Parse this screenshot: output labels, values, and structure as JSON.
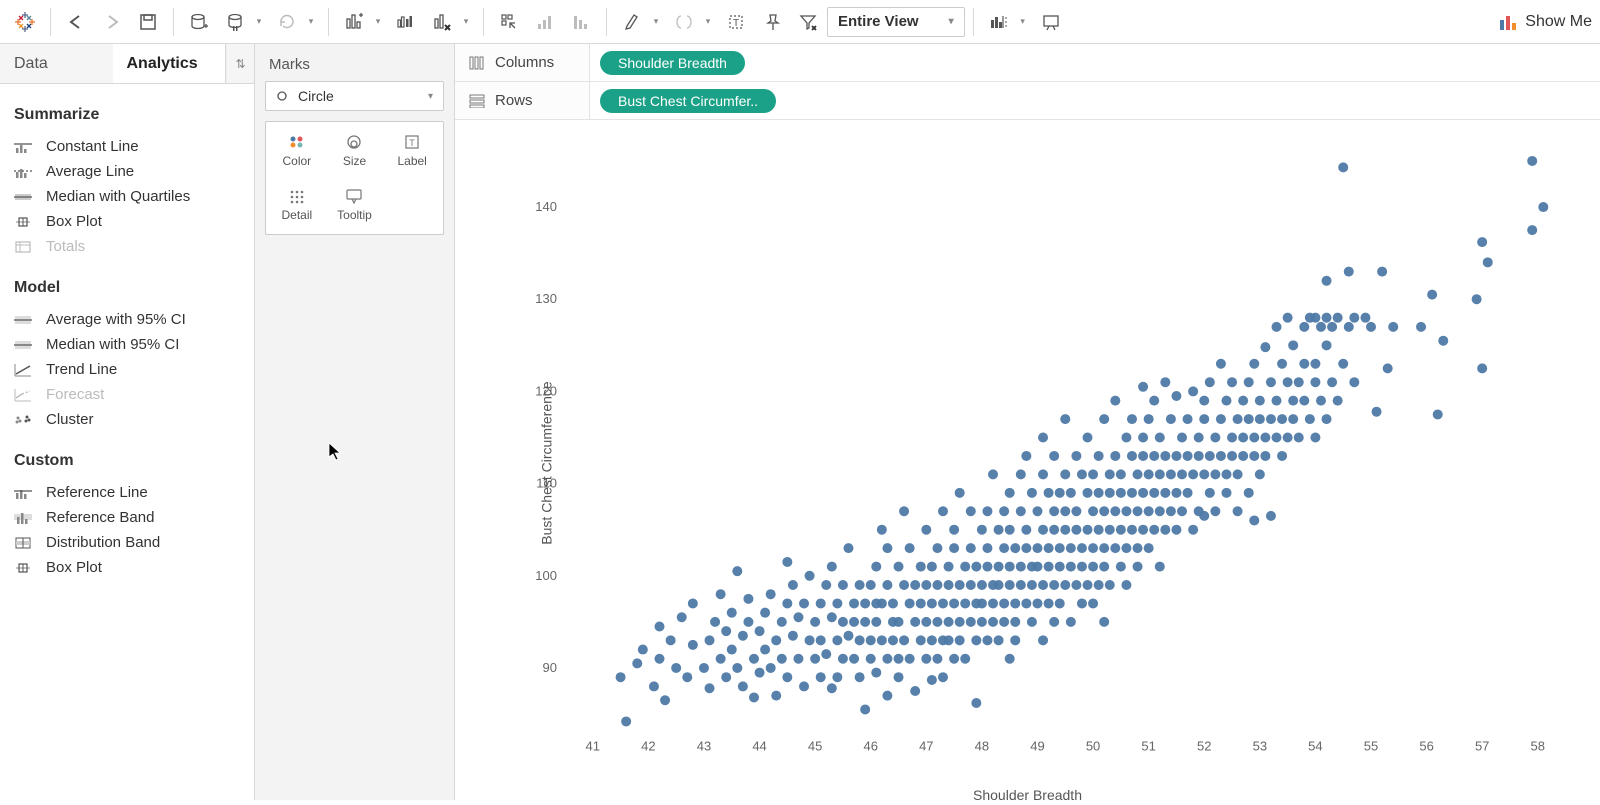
{
  "toolbar": {
    "fit_label": "Entire View",
    "showme_label": "Show Me"
  },
  "tabs": {
    "data": "Data",
    "analytics": "Analytics"
  },
  "analytics": {
    "summarize_title": "Summarize",
    "summarize": [
      "Constant Line",
      "Average Line",
      "Median with Quartiles",
      "Box Plot",
      "Totals"
    ],
    "summarize_disabled": [
      4
    ],
    "model_title": "Model",
    "model": [
      "Average with 95% CI",
      "Median with 95% CI",
      "Trend Line",
      "Forecast",
      "Cluster"
    ],
    "model_disabled": [
      3
    ],
    "custom_title": "Custom",
    "custom": [
      "Reference Line",
      "Reference Band",
      "Distribution Band",
      "Box Plot"
    ]
  },
  "marks": {
    "title": "Marks",
    "type": "Circle",
    "cells": [
      "Color",
      "Size",
      "Label",
      "Detail",
      "Tooltip"
    ]
  },
  "shelves": {
    "columns_label": "Columns",
    "rows_label": "Rows",
    "columns_pill": "Shoulder Breadth",
    "rows_pill": "Bust Chest Circumfer.."
  },
  "chart": {
    "type": "scatter",
    "x_axis_title": "Shoulder Breadth",
    "y_axis_title": "Bust Chest Circumference",
    "point_color": "#4e79a7",
    "point_radius": 5,
    "x_ticks": [
      41,
      42,
      43,
      44,
      45,
      46,
      47,
      48,
      49,
      50,
      51,
      52,
      53,
      54,
      55,
      56,
      57,
      58
    ],
    "y_ticks": [
      90,
      100,
      110,
      120,
      130,
      140
    ],
    "xlim": [
      40.5,
      58.4
    ],
    "ylim": [
      83,
      147
    ],
    "data": [
      [
        41.5,
        89
      ],
      [
        41.6,
        84.2
      ],
      [
        41.8,
        90.5
      ],
      [
        41.9,
        92
      ],
      [
        42.1,
        88
      ],
      [
        42.2,
        91
      ],
      [
        42.2,
        94.5
      ],
      [
        42.3,
        86.5
      ],
      [
        42.4,
        93
      ],
      [
        42.5,
        90
      ],
      [
        42.6,
        95.5
      ],
      [
        42.7,
        89
      ],
      [
        42.8,
        92.5
      ],
      [
        42.8,
        97
      ],
      [
        43.0,
        90
      ],
      [
        43.1,
        93
      ],
      [
        43.1,
        87.8
      ],
      [
        43.2,
        95
      ],
      [
        43.3,
        91
      ],
      [
        43.3,
        98
      ],
      [
        43.4,
        89
      ],
      [
        43.4,
        94
      ],
      [
        43.5,
        92
      ],
      [
        43.5,
        96
      ],
      [
        43.6,
        90
      ],
      [
        43.6,
        100.5
      ],
      [
        43.7,
        93.5
      ],
      [
        43.7,
        88
      ],
      [
        43.8,
        95
      ],
      [
        43.8,
        97.5
      ],
      [
        43.9,
        91
      ],
      [
        43.9,
        86.8
      ],
      [
        44.0,
        94
      ],
      [
        44.0,
        89.5
      ],
      [
        44.1,
        92
      ],
      [
        44.1,
        96
      ],
      [
        44.2,
        90
      ],
      [
        44.2,
        98
      ],
      [
        44.3,
        93
      ],
      [
        44.3,
        87
      ],
      [
        44.4,
        95
      ],
      [
        44.4,
        91
      ],
      [
        44.5,
        97
      ],
      [
        44.5,
        89
      ],
      [
        44.5,
        101.5
      ],
      [
        44.6,
        93.5
      ],
      [
        44.6,
        99
      ],
      [
        44.7,
        91
      ],
      [
        44.7,
        95.5
      ],
      [
        44.8,
        88
      ],
      [
        44.8,
        97
      ],
      [
        44.9,
        93
      ],
      [
        44.9,
        100
      ],
      [
        45.0,
        91
      ],
      [
        45.0,
        95
      ],
      [
        45.1,
        89
      ],
      [
        45.1,
        97
      ],
      [
        45.1,
        93
      ],
      [
        45.2,
        99
      ],
      [
        45.2,
        91.5
      ],
      [
        45.3,
        95.5
      ],
      [
        45.3,
        87.8
      ],
      [
        45.3,
        101
      ],
      [
        45.4,
        93
      ],
      [
        45.4,
        97
      ],
      [
        45.4,
        89
      ],
      [
        45.5,
        95
      ],
      [
        45.5,
        91
      ],
      [
        45.5,
        99
      ],
      [
        45.6,
        93.5
      ],
      [
        45.6,
        103
      ],
      [
        45.7,
        97
      ],
      [
        45.7,
        91
      ],
      [
        45.7,
        95
      ],
      [
        45.8,
        89
      ],
      [
        45.8,
        99
      ],
      [
        45.8,
        93
      ],
      [
        45.9,
        97
      ],
      [
        45.9,
        85.5
      ],
      [
        45.9,
        95
      ],
      [
        46.0,
        91
      ],
      [
        46.0,
        99
      ],
      [
        46.0,
        93
      ],
      [
        46.1,
        97
      ],
      [
        46.1,
        89.5
      ],
      [
        46.1,
        101
      ],
      [
        46.1,
        95
      ],
      [
        46.2,
        93
      ],
      [
        46.2,
        105
      ],
      [
        46.2,
        97
      ],
      [
        46.3,
        91
      ],
      [
        46.3,
        99
      ],
      [
        46.3,
        87
      ],
      [
        46.3,
        103
      ],
      [
        46.4,
        95
      ],
      [
        46.4,
        93
      ],
      [
        46.4,
        97
      ],
      [
        46.5,
        91
      ],
      [
        46.5,
        101
      ],
      [
        46.5,
        89
      ],
      [
        46.5,
        95
      ],
      [
        46.6,
        99
      ],
      [
        46.6,
        93
      ],
      [
        46.6,
        107
      ],
      [
        46.7,
        97
      ],
      [
        46.7,
        91
      ],
      [
        46.7,
        103
      ],
      [
        46.8,
        95
      ],
      [
        46.8,
        99
      ],
      [
        46.8,
        87.5
      ],
      [
        46.9,
        101
      ],
      [
        46.9,
        93
      ],
      [
        46.9,
        97
      ],
      [
        47.0,
        95
      ],
      [
        47.0,
        91
      ],
      [
        47.0,
        99
      ],
      [
        47.0,
        105
      ],
      [
        47.1,
        93
      ],
      [
        47.1,
        97
      ],
      [
        47.1,
        101
      ],
      [
        47.1,
        88.7
      ],
      [
        47.2,
        95
      ],
      [
        47.2,
        103
      ],
      [
        47.2,
        91
      ],
      [
        47.2,
        99
      ],
      [
        47.3,
        97
      ],
      [
        47.3,
        93
      ],
      [
        47.3,
        107
      ],
      [
        47.3,
        89
      ],
      [
        47.4,
        101
      ],
      [
        47.4,
        95
      ],
      [
        47.4,
        99
      ],
      [
        47.4,
        93
      ],
      [
        47.5,
        97
      ],
      [
        47.5,
        91
      ],
      [
        47.5,
        105
      ],
      [
        47.5,
        103
      ],
      [
        47.6,
        99
      ],
      [
        47.6,
        95
      ],
      [
        47.6,
        93
      ],
      [
        47.6,
        109
      ],
      [
        47.7,
        101
      ],
      [
        47.7,
        97
      ],
      [
        47.7,
        91
      ],
      [
        47.8,
        99
      ],
      [
        47.8,
        103
      ],
      [
        47.8,
        95
      ],
      [
        47.8,
        107
      ],
      [
        47.9,
        97
      ],
      [
        47.9,
        93
      ],
      [
        47.9,
        101
      ],
      [
        47.9,
        86.2
      ],
      [
        48.0,
        99
      ],
      [
        48.0,
        105
      ],
      [
        48.0,
        95
      ],
      [
        48.0,
        97
      ],
      [
        48.1,
        101
      ],
      [
        48.1,
        93
      ],
      [
        48.1,
        107
      ],
      [
        48.1,
        103
      ],
      [
        48.2,
        99
      ],
      [
        48.2,
        97
      ],
      [
        48.2,
        95
      ],
      [
        48.2,
        111
      ],
      [
        48.3,
        101
      ],
      [
        48.3,
        105
      ],
      [
        48.3,
        93
      ],
      [
        48.3,
        99
      ],
      [
        48.4,
        97
      ],
      [
        48.4,
        103
      ],
      [
        48.4,
        107
      ],
      [
        48.4,
        95
      ],
      [
        48.5,
        101
      ],
      [
        48.5,
        99
      ],
      [
        48.5,
        91
      ],
      [
        48.5,
        109
      ],
      [
        48.5,
        105
      ],
      [
        48.6,
        97
      ],
      [
        48.6,
        103
      ],
      [
        48.6,
        95
      ],
      [
        48.6,
        93
      ],
      [
        48.7,
        101
      ],
      [
        48.7,
        99
      ],
      [
        48.7,
        107
      ],
      [
        48.7,
        111
      ],
      [
        48.8,
        97
      ],
      [
        48.8,
        105
      ],
      [
        48.8,
        103
      ],
      [
        48.8,
        113
      ],
      [
        48.9,
        99
      ],
      [
        48.9,
        101
      ],
      [
        48.9,
        95
      ],
      [
        48.9,
        109
      ],
      [
        49.0,
        97
      ],
      [
        49.0,
        103
      ],
      [
        49.0,
        107
      ],
      [
        49.0,
        101
      ],
      [
        49.1,
        99
      ],
      [
        49.1,
        105
      ],
      [
        49.1,
        93
      ],
      [
        49.1,
        111
      ],
      [
        49.1,
        115
      ],
      [
        49.2,
        103
      ],
      [
        49.2,
        97
      ],
      [
        49.2,
        101
      ],
      [
        49.2,
        109
      ],
      [
        49.3,
        105
      ],
      [
        49.3,
        99
      ],
      [
        49.3,
        107
      ],
      [
        49.3,
        95
      ],
      [
        49.3,
        113
      ],
      [
        49.4,
        101
      ],
      [
        49.4,
        103
      ],
      [
        49.4,
        97
      ],
      [
        49.4,
        109
      ],
      [
        49.5,
        105
      ],
      [
        49.5,
        99
      ],
      [
        49.5,
        111
      ],
      [
        49.5,
        107
      ],
      [
        49.5,
        117
      ],
      [
        49.6,
        103
      ],
      [
        49.6,
        101
      ],
      [
        49.6,
        95
      ],
      [
        49.6,
        109
      ],
      [
        49.7,
        105
      ],
      [
        49.7,
        99
      ],
      [
        49.7,
        113
      ],
      [
        49.7,
        107
      ],
      [
        49.8,
        103
      ],
      [
        49.8,
        97
      ],
      [
        49.8,
        111
      ],
      [
        49.8,
        101
      ],
      [
        49.9,
        109
      ],
      [
        49.9,
        105
      ],
      [
        49.9,
        99
      ],
      [
        49.9,
        115
      ],
      [
        50.0,
        103
      ],
      [
        50.0,
        107
      ],
      [
        50.0,
        101
      ],
      [
        50.0,
        111
      ],
      [
        50.0,
        97
      ],
      [
        50.1,
        105
      ],
      [
        50.1,
        109
      ],
      [
        50.1,
        99
      ],
      [
        50.1,
        113
      ],
      [
        50.2,
        103
      ],
      [
        50.2,
        107
      ],
      [
        50.2,
        101
      ],
      [
        50.2,
        117
      ],
      [
        50.2,
        95
      ],
      [
        50.3,
        111
      ],
      [
        50.3,
        105
      ],
      [
        50.3,
        109
      ],
      [
        50.3,
        99
      ],
      [
        50.4,
        107
      ],
      [
        50.4,
        103
      ],
      [
        50.4,
        113
      ],
      [
        50.4,
        119
      ],
      [
        50.5,
        105
      ],
      [
        50.5,
        109
      ],
      [
        50.5,
        101
      ],
      [
        50.5,
        111
      ],
      [
        50.6,
        107
      ],
      [
        50.6,
        103
      ],
      [
        50.6,
        115
      ],
      [
        50.6,
        99
      ],
      [
        50.7,
        109
      ],
      [
        50.7,
        105
      ],
      [
        50.7,
        113
      ],
      [
        50.7,
        117
      ],
      [
        50.8,
        107
      ],
      [
        50.8,
        111
      ],
      [
        50.8,
        103
      ],
      [
        50.8,
        101
      ],
      [
        50.9,
        109
      ],
      [
        50.9,
        105
      ],
      [
        50.9,
        115
      ],
      [
        50.9,
        113
      ],
      [
        50.9,
        120.5
      ],
      [
        51.0,
        107
      ],
      [
        51.0,
        111
      ],
      [
        51.0,
        103
      ],
      [
        51.0,
        117
      ],
      [
        51.1,
        109
      ],
      [
        51.1,
        105
      ],
      [
        51.1,
        113
      ],
      [
        51.1,
        119
      ],
      [
        51.2,
        111
      ],
      [
        51.2,
        107
      ],
      [
        51.2,
        115
      ],
      [
        51.2,
        101
      ],
      [
        51.3,
        109
      ],
      [
        51.3,
        113
      ],
      [
        51.3,
        105
      ],
      [
        51.3,
        121
      ],
      [
        51.4,
        111
      ],
      [
        51.4,
        107
      ],
      [
        51.4,
        117
      ],
      [
        51.5,
        109
      ],
      [
        51.5,
        113
      ],
      [
        51.5,
        105
      ],
      [
        51.5,
        119.5
      ],
      [
        51.6,
        111
      ],
      [
        51.6,
        115
      ],
      [
        51.6,
        107
      ],
      [
        51.7,
        113
      ],
      [
        51.7,
        109
      ],
      [
        51.7,
        117
      ],
      [
        51.8,
        111
      ],
      [
        51.8,
        105
      ],
      [
        51.8,
        120
      ],
      [
        51.9,
        113
      ],
      [
        51.9,
        107
      ],
      [
        51.9,
        115
      ],
      [
        52.0,
        111
      ],
      [
        52.0,
        117
      ],
      [
        52.0,
        106.5
      ],
      [
        52.0,
        119
      ],
      [
        52.1,
        113
      ],
      [
        52.1,
        109
      ],
      [
        52.1,
        121
      ],
      [
        52.2,
        115
      ],
      [
        52.2,
        111
      ],
      [
        52.2,
        107
      ],
      [
        52.3,
        117
      ],
      [
        52.3,
        113
      ],
      [
        52.3,
        123
      ],
      [
        52.4,
        111
      ],
      [
        52.4,
        119
      ],
      [
        52.4,
        109
      ],
      [
        52.5,
        115
      ],
      [
        52.5,
        113
      ],
      [
        52.5,
        121
      ],
      [
        52.6,
        117
      ],
      [
        52.6,
        111
      ],
      [
        52.6,
        107
      ],
      [
        52.7,
        115
      ],
      [
        52.7,
        119
      ],
      [
        52.7,
        113
      ],
      [
        52.8,
        117
      ],
      [
        52.8,
        121
      ],
      [
        52.8,
        109
      ],
      [
        52.9,
        115
      ],
      [
        52.9,
        123
      ],
      [
        52.9,
        113
      ],
      [
        52.9,
        106
      ],
      [
        53.0,
        117
      ],
      [
        53.0,
        111
      ],
      [
        53.0,
        119
      ],
      [
        53.1,
        115
      ],
      [
        53.1,
        124.8
      ],
      [
        53.1,
        113
      ],
      [
        53.2,
        121
      ],
      [
        53.2,
        117
      ],
      [
        53.2,
        106.5
      ],
      [
        53.3,
        119
      ],
      [
        53.3,
        115
      ],
      [
        53.3,
        127
      ],
      [
        53.4,
        117
      ],
      [
        53.4,
        113
      ],
      [
        53.4,
        123
      ],
      [
        53.5,
        121
      ],
      [
        53.5,
        115
      ],
      [
        53.5,
        128
      ],
      [
        53.6,
        119
      ],
      [
        53.6,
        117
      ],
      [
        53.6,
        125
      ],
      [
        53.7,
        121
      ],
      [
        53.7,
        115
      ],
      [
        53.8,
        127
      ],
      [
        53.8,
        119
      ],
      [
        53.8,
        123
      ],
      [
        53.9,
        117
      ],
      [
        53.9,
        128
      ],
      [
        54.0,
        121
      ],
      [
        54.0,
        128
      ],
      [
        54.0,
        115
      ],
      [
        54.0,
        123
      ],
      [
        54.1,
        127
      ],
      [
        54.1,
        119
      ],
      [
        54.2,
        128
      ],
      [
        54.2,
        125
      ],
      [
        54.2,
        132
      ],
      [
        54.2,
        117
      ],
      [
        54.3,
        127
      ],
      [
        54.3,
        121
      ],
      [
        54.4,
        128
      ],
      [
        54.4,
        119
      ],
      [
        54.5,
        144.3
      ],
      [
        54.5,
        123
      ],
      [
        54.6,
        127
      ],
      [
        54.6,
        133
      ],
      [
        54.7,
        128
      ],
      [
        54.7,
        121
      ],
      [
        54.9,
        128
      ],
      [
        55.0,
        127
      ],
      [
        55.1,
        117.8
      ],
      [
        55.2,
        133
      ],
      [
        55.3,
        122.5
      ],
      [
        55.4,
        127
      ],
      [
        55.9,
        127
      ],
      [
        56.1,
        130.5
      ],
      [
        56.2,
        117.5
      ],
      [
        56.3,
        125.5
      ],
      [
        56.9,
        130
      ],
      [
        57.0,
        136.2
      ],
      [
        57.0,
        122.5
      ],
      [
        57.1,
        134
      ],
      [
        57.9,
        145
      ],
      [
        57.9,
        137.5
      ],
      [
        58.1,
        140
      ]
    ]
  }
}
